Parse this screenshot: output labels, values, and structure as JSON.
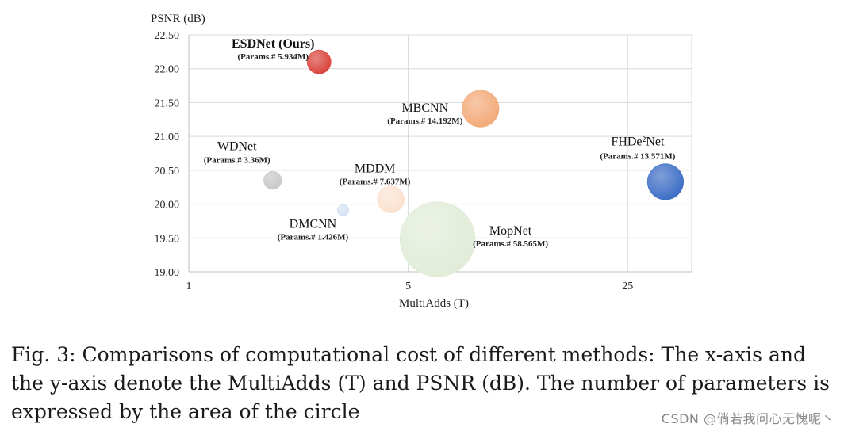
{
  "chart_data": {
    "type": "scatter",
    "subtype": "bubble",
    "ylabel": "PSNR (dB)",
    "xlabel": "MultiAdds (T)",
    "x_scale": "log",
    "xlim": [
      1,
      40
    ],
    "ylim": [
      19.0,
      22.5
    ],
    "x_ticks": [
      "1",
      "5",
      "25"
    ],
    "x_tick_values": [
      1,
      5,
      25
    ],
    "y_ticks": [
      "19.00",
      "19.50",
      "20.00",
      "20.50",
      "21.00",
      "21.50",
      "22.00",
      "22.50"
    ],
    "y_tick_values": [
      19.0,
      19.5,
      20.0,
      20.5,
      21.0,
      21.5,
      22.0,
      22.5
    ],
    "grid": true,
    "points": [
      {
        "name": "ESDNet (Ours)",
        "params_label": "(Params.# 5.934M)",
        "x": 2.6,
        "y": 22.1,
        "params": 5.934,
        "color": "#d9413a",
        "bold": true
      },
      {
        "name": "MBCNN",
        "params_label": "(Params.# 14.192M)",
        "x": 8.5,
        "y": 21.41,
        "params": 14.192,
        "color": "#f2a977",
        "bold": false
      },
      {
        "name": "FHDe²Net",
        "params_label": "(Params.# 13.571M)",
        "x": 33,
        "y": 20.33,
        "params": 13.571,
        "color": "#3a6cc4",
        "bold": false
      },
      {
        "name": "WDNet",
        "params_label": "(Params.# 3.36M)",
        "x": 1.85,
        "y": 20.35,
        "params": 3.36,
        "color": "#c8c8c8",
        "bold": false
      },
      {
        "name": "MDDM",
        "params_label": "(Params.# 7.637M)",
        "x": 4.4,
        "y": 20.07,
        "params": 7.637,
        "color": "#fbe1cf",
        "bold": false
      },
      {
        "name": "DMCNN",
        "params_label": "(Params.# 1.426M)",
        "x": 3.1,
        "y": 19.91,
        "params": 1.426,
        "color": "#d6e2f3",
        "bold": false
      },
      {
        "name": "MopNet",
        "params_label": "(Params.# 58.565M)",
        "x": 6.2,
        "y": 19.48,
        "params": 58.565,
        "color": "#e1ecd8",
        "bold": false
      }
    ]
  },
  "caption": {
    "text": "Fig. 3: Comparisons of computational cost of different methods: The x-axis and the y-axis denote the MultiAdds (T) and PSNR (dB). The number of parameters is expressed by the area of the circle"
  },
  "watermark": {
    "text": "CSDN @倘若我问心无愧呢丶"
  }
}
